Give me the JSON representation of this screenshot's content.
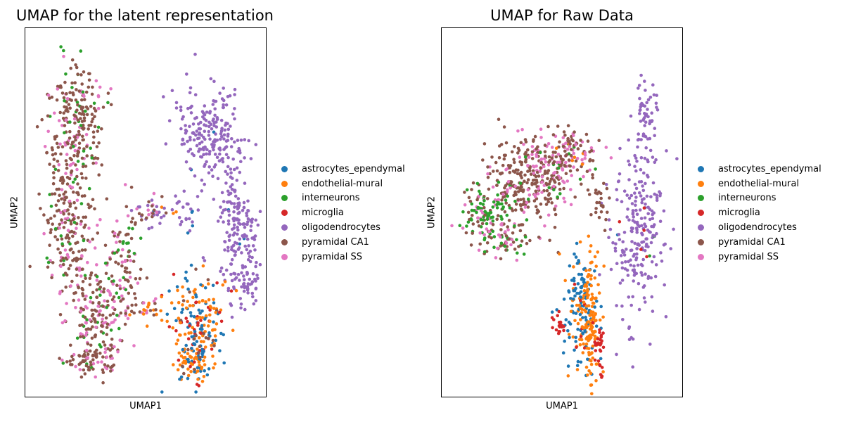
{
  "chart_data": [
    {
      "type": "scatter",
      "title": "UMAP for the latent representation",
      "xlabel": "UMAP1",
      "ylabel": "UMAP2",
      "ticks": "none",
      "grid": false,
      "legend_position": "right",
      "series": [
        {
          "name": "astrocytes_ependymal",
          "color": "#1f77b4"
        },
        {
          "name": "endothelial-mural",
          "color": "#ff7f0e"
        },
        {
          "name": "interneurons",
          "color": "#2ca02c"
        },
        {
          "name": "microglia",
          "color": "#d62728"
        },
        {
          "name": "oligodendrocytes",
          "color": "#9467bd"
        },
        {
          "name": "pyramidal CA1",
          "color": "#8c564b"
        },
        {
          "name": "pyramidal SS",
          "color": "#e377c2"
        }
      ]
    },
    {
      "type": "scatter",
      "title": "UMAP for Raw Data",
      "xlabel": "UMAP1",
      "ylabel": "UMAP2",
      "ticks": "none",
      "grid": false,
      "legend_position": "right",
      "series": [
        {
          "name": "astrocytes_ependymal",
          "color": "#1f77b4"
        },
        {
          "name": "endothelial-mural",
          "color": "#ff7f0e"
        },
        {
          "name": "interneurons",
          "color": "#2ca02c"
        },
        {
          "name": "microglia",
          "color": "#d62728"
        },
        {
          "name": "oligodendrocytes",
          "color": "#9467bd"
        },
        {
          "name": "pyramidal CA1",
          "color": "#8c564b"
        },
        {
          "name": "pyramidal SS",
          "color": "#e377c2"
        }
      ]
    }
  ]
}
